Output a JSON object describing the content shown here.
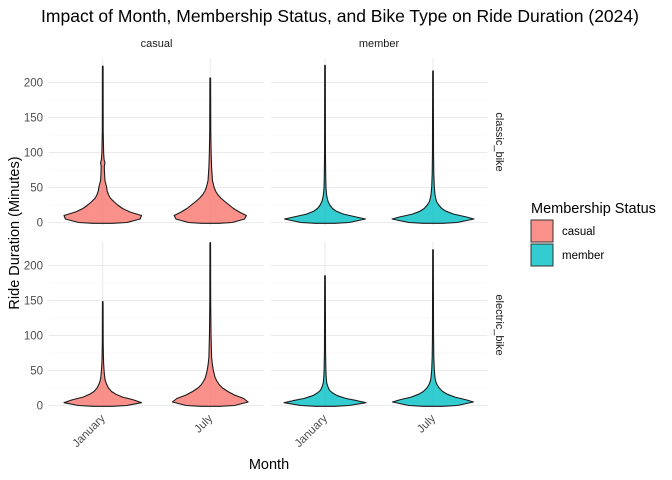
{
  "chart_data": {
    "type": "violin",
    "title": "Impact of Month, Membership Status, and Bike Type on Ride Duration (2024)",
    "xlabel": "Month",
    "ylabel": "Ride Duration (Minutes)",
    "categories": [
      "January",
      "July"
    ],
    "y_ticks": [
      0,
      50,
      100,
      150,
      200
    ],
    "ylim": [
      -5,
      235
    ],
    "grid": true,
    "legend": {
      "title": "Membership Status",
      "placement": "right",
      "entries": [
        {
          "label": "casual",
          "color": "#F8766D"
        },
        {
          "label": "member",
          "color": "#00BFC4"
        }
      ]
    },
    "facet_columns": [
      "casual",
      "member"
    ],
    "facet_rows": [
      "classic_bike",
      "electric_bike"
    ],
    "panels": [
      {
        "column": "casual",
        "row": "classic_bike",
        "color": "#F8766D",
        "violins": [
          {
            "month": "January",
            "max": 223,
            "profile": [
              [
                0,
                0.55
              ],
              [
                5,
                0.85
              ],
              [
                10,
                0.88
              ],
              [
                15,
                0.62
              ],
              [
                20,
                0.45
              ],
              [
                25,
                0.34
              ],
              [
                30,
                0.25
              ],
              [
                35,
                0.17
              ],
              [
                40,
                0.13
              ],
              [
                45,
                0.1
              ],
              [
                50,
                0.09
              ],
              [
                55,
                0.07
              ],
              [
                60,
                0.05
              ],
              [
                70,
                0.04
              ],
              [
                80,
                0.035
              ],
              [
                85,
                0.05
              ],
              [
                90,
                0.03
              ],
              [
                100,
                0.02
              ],
              [
                130,
                0.01
              ],
              [
                223,
                0.008
              ]
            ]
          },
          {
            "month": "July",
            "max": 206,
            "profile": [
              [
                0,
                0.5
              ],
              [
                5,
                0.78
              ],
              [
                10,
                0.82
              ],
              [
                15,
                0.66
              ],
              [
                20,
                0.53
              ],
              [
                25,
                0.43
              ],
              [
                30,
                0.33
              ],
              [
                35,
                0.24
              ],
              [
                40,
                0.17
              ],
              [
                45,
                0.12
              ],
              [
                50,
                0.09
              ],
              [
                55,
                0.07
              ],
              [
                60,
                0.05
              ],
              [
                70,
                0.04
              ],
              [
                80,
                0.03
              ],
              [
                100,
                0.02
              ],
              [
                130,
                0.012
              ],
              [
                206,
                0.008
              ]
            ]
          }
        ]
      },
      {
        "column": "member",
        "row": "classic_bike",
        "color": "#00BFC4",
        "violins": [
          {
            "month": "January",
            "max": 224,
            "profile": [
              [
                0,
                0.55
              ],
              [
                5,
                0.92
              ],
              [
                8,
                0.7
              ],
              [
                12,
                0.42
              ],
              [
                16,
                0.26
              ],
              [
                20,
                0.17
              ],
              [
                25,
                0.11
              ],
              [
                30,
                0.07
              ],
              [
                35,
                0.05
              ],
              [
                40,
                0.035
              ],
              [
                50,
                0.022
              ],
              [
                70,
                0.015
              ],
              [
                100,
                0.01
              ],
              [
                224,
                0.007
              ]
            ]
          },
          {
            "month": "July",
            "max": 216,
            "profile": [
              [
                0,
                0.55
              ],
              [
                5,
                0.93
              ],
              [
                8,
                0.75
              ],
              [
                12,
                0.47
              ],
              [
                16,
                0.3
              ],
              [
                20,
                0.2
              ],
              [
                25,
                0.13
              ],
              [
                30,
                0.08
              ],
              [
                35,
                0.06
              ],
              [
                40,
                0.045
              ],
              [
                50,
                0.03
              ],
              [
                70,
                0.018
              ],
              [
                100,
                0.012
              ],
              [
                216,
                0.007
              ]
            ]
          }
        ]
      },
      {
        "column": "casual",
        "row": "electric_bike",
        "color": "#F8766D",
        "violins": [
          {
            "month": "January",
            "max": 148,
            "profile": [
              [
                0,
                0.55
              ],
              [
                4,
                0.88
              ],
              [
                8,
                0.7
              ],
              [
                12,
                0.45
              ],
              [
                16,
                0.3
              ],
              [
                20,
                0.2
              ],
              [
                25,
                0.13
              ],
              [
                30,
                0.09
              ],
              [
                35,
                0.06
              ],
              [
                40,
                0.045
              ],
              [
                50,
                0.03
              ],
              [
                60,
                0.02
              ],
              [
                70,
                0.015
              ],
              [
                90,
                0.01
              ],
              [
                148,
                0.007
              ]
            ]
          },
          {
            "month": "July",
            "max": 232,
            "profile": [
              [
                0,
                0.55
              ],
              [
                5,
                0.86
              ],
              [
                10,
                0.76
              ],
              [
                15,
                0.55
              ],
              [
                20,
                0.4
              ],
              [
                25,
                0.28
              ],
              [
                30,
                0.2
              ],
              [
                35,
                0.15
              ],
              [
                40,
                0.11
              ],
              [
                50,
                0.07
              ],
              [
                60,
                0.045
              ],
              [
                70,
                0.03
              ],
              [
                100,
                0.018
              ],
              [
                150,
                0.01
              ],
              [
                232,
                0.007
              ]
            ]
          }
        ]
      },
      {
        "column": "member",
        "row": "electric_bike",
        "color": "#00BFC4",
        "violins": [
          {
            "month": "January",
            "max": 185,
            "profile": [
              [
                0,
                0.55
              ],
              [
                4,
                0.93
              ],
              [
                7,
                0.72
              ],
              [
                10,
                0.48
              ],
              [
                14,
                0.28
              ],
              [
                18,
                0.17
              ],
              [
                22,
                0.1
              ],
              [
                27,
                0.065
              ],
              [
                32,
                0.04
              ],
              [
                40,
                0.028
              ],
              [
                50,
                0.02
              ],
              [
                80,
                0.012
              ],
              [
                185,
                0.007
              ]
            ]
          },
          {
            "month": "July",
            "max": 222,
            "profile": [
              [
                0,
                0.55
              ],
              [
                5,
                0.92
              ],
              [
                8,
                0.76
              ],
              [
                12,
                0.5
              ],
              [
                16,
                0.33
              ],
              [
                20,
                0.22
              ],
              [
                25,
                0.14
              ],
              [
                30,
                0.09
              ],
              [
                35,
                0.06
              ],
              [
                40,
                0.045
              ],
              [
                50,
                0.03
              ],
              [
                70,
                0.018
              ],
              [
                100,
                0.012
              ],
              [
                222,
                0.007
              ]
            ]
          }
        ]
      }
    ]
  }
}
